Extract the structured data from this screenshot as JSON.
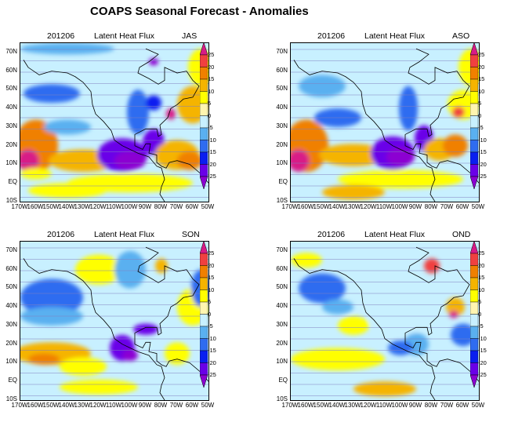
{
  "title": "COAPS Seasonal Forecast - Anomalies",
  "panels": [
    {
      "date": "201206",
      "variable": "Latent Heat Flux",
      "season": "JAS"
    },
    {
      "date": "201206",
      "variable": "Latent Heat Flux",
      "season": "ASO"
    },
    {
      "date": "201206",
      "variable": "Latent Heat Flux",
      "season": "SON"
    },
    {
      "date": "201206",
      "variable": "Latent Heat Flux",
      "season": "OND"
    }
  ],
  "lat_labels": [
    "70N",
    "60N",
    "50N",
    "40N",
    "30N",
    "20N",
    "10N",
    "EQ",
    "10S"
  ],
  "lon_labels": [
    "170W",
    "160W",
    "150W",
    "140W",
    "130W",
    "120W",
    "110W",
    "100W",
    "90W",
    "80W",
    "70W",
    "60W",
    "50W"
  ],
  "colorbar": {
    "levels": [
      "25",
      "20",
      "15",
      "10",
      "5",
      "0",
      "-5",
      "-10",
      "-15",
      "-20",
      "-25"
    ],
    "colors": [
      "#8c00d2",
      "#6a00e8",
      "#0a1ef0",
      "#2f6cf0",
      "#5ab0f0",
      "#c8f0ff",
      "#fff5b0",
      "#ffff00",
      "#f5b400",
      "#f08000",
      "#f04040",
      "#d81b87"
    ]
  }
}
